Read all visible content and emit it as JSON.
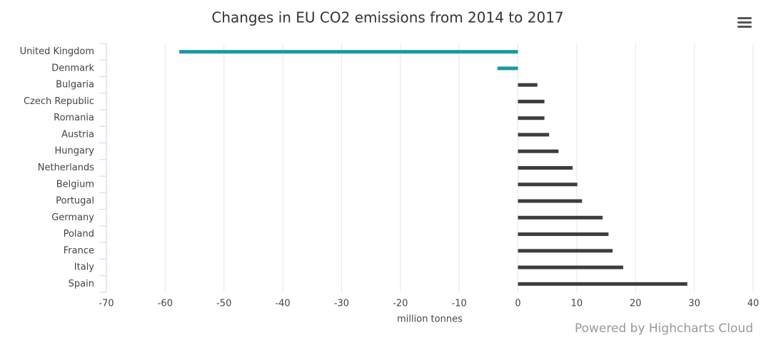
{
  "chart_data": {
    "type": "bar",
    "title": "Changes in EU CO2 emissions from 2014 to 2017",
    "categories": [
      "United Kingdom",
      "Denmark",
      "Bulgaria",
      "Czech Republic",
      "Romania",
      "Austria",
      "Hungary",
      "Netherlands",
      "Belgium",
      "Portugal",
      "Germany",
      "Poland",
      "France",
      "Italy",
      "Spain"
    ],
    "values": [
      -57.6,
      -3.5,
      3.3,
      4.5,
      4.5,
      5.3,
      6.9,
      9.3,
      10.1,
      10.9,
      14.4,
      15.4,
      16.1,
      17.9,
      28.8
    ],
    "color": "#3d3d3f",
    "negative_color": "#1b98a5",
    "xlim": [
      -70,
      40
    ],
    "xticks": [
      -70,
      -60,
      -50,
      -40,
      -30,
      -20,
      -10,
      0,
      10,
      20,
      30,
      40
    ],
    "x_label": "million tonnes",
    "grid": true,
    "credits": "Powered by Highcharts Cloud"
  }
}
